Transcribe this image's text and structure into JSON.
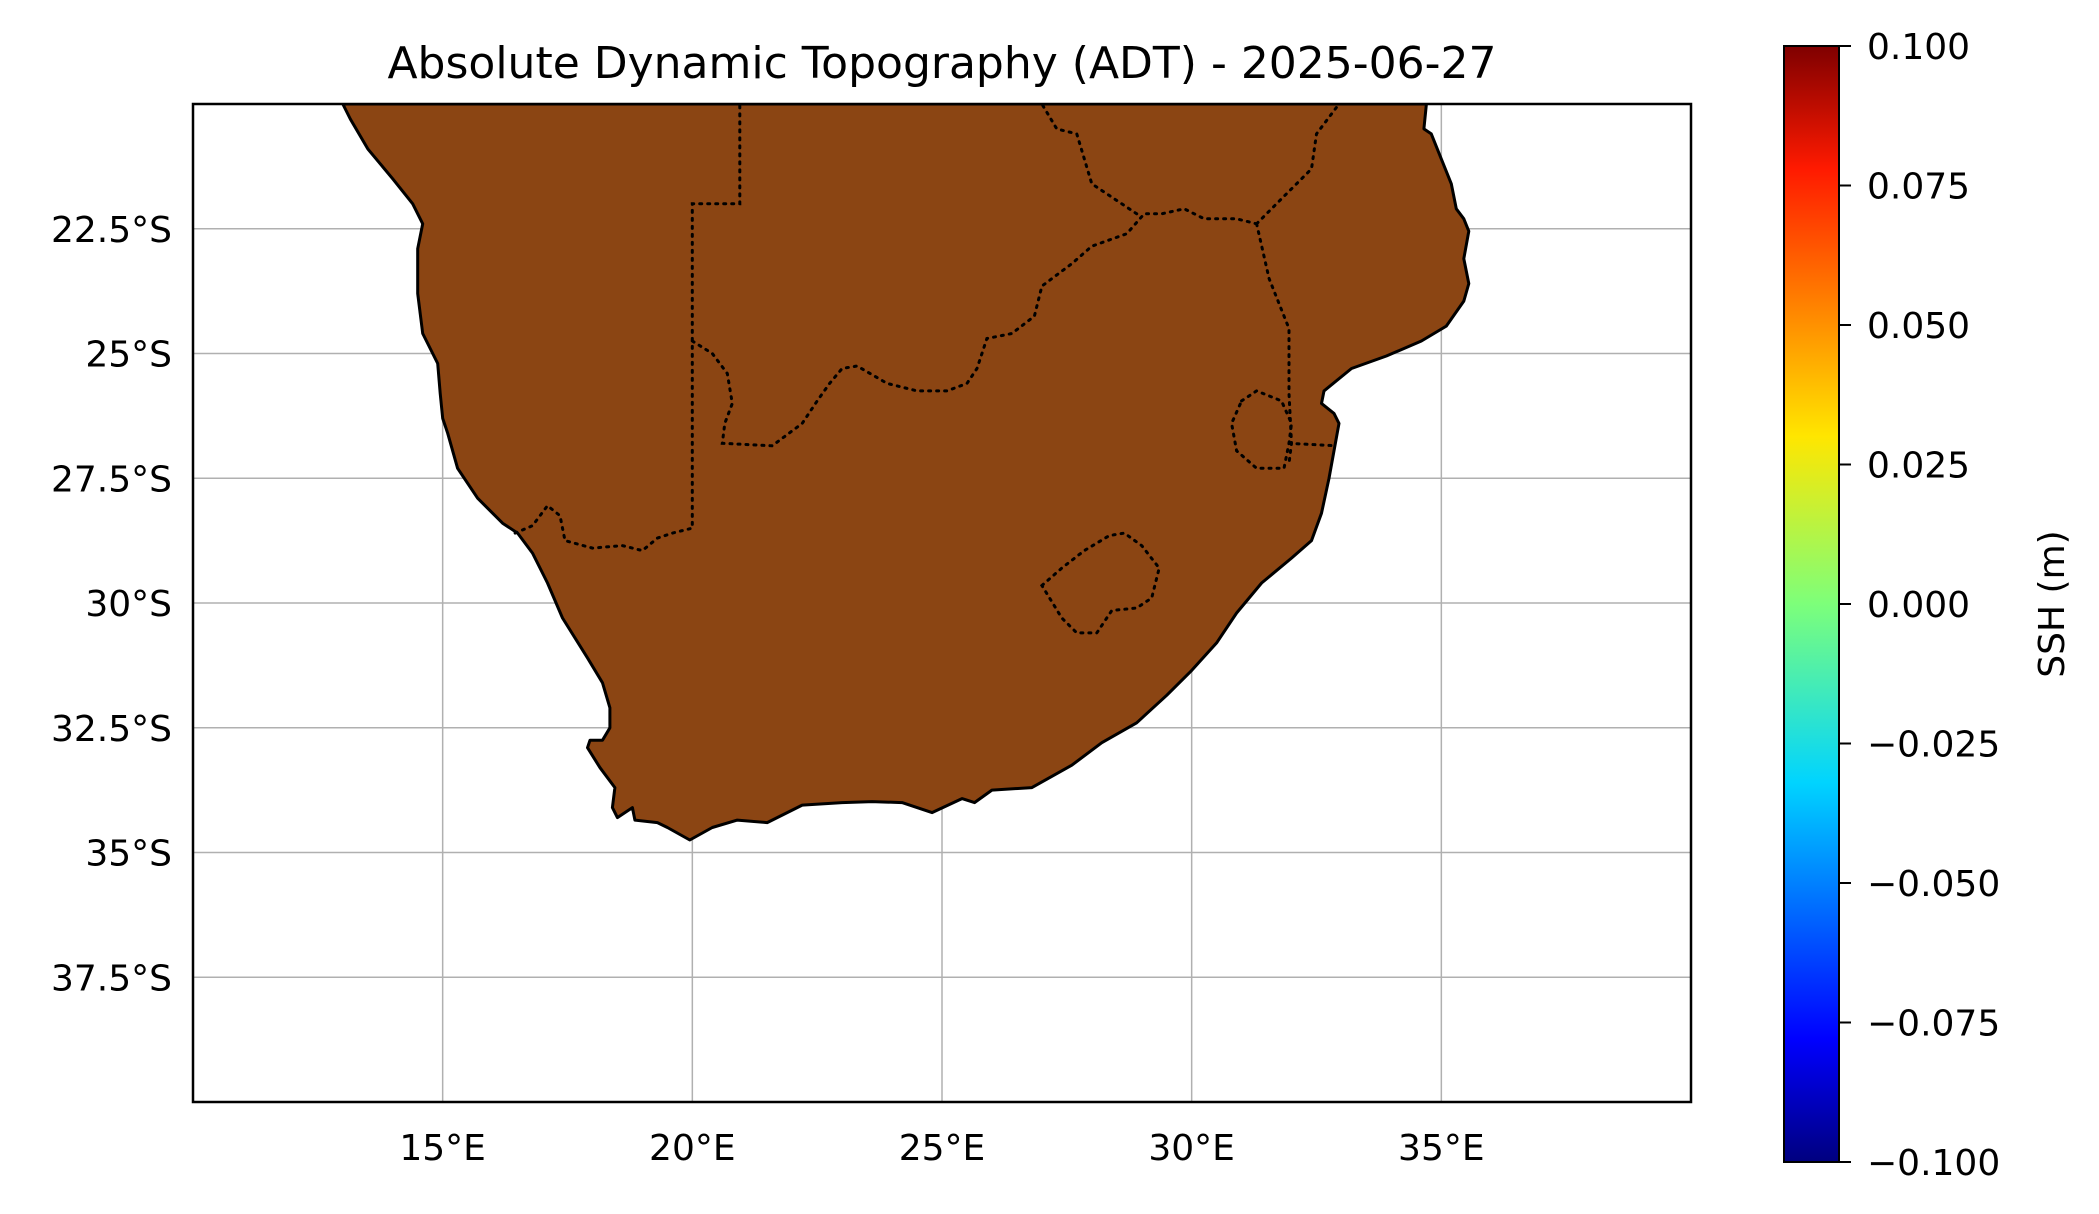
{
  "title": "Absolute Dynamic Topography (ADT) - 2025-06-27",
  "map": {
    "lon_range": [
      10,
      40
    ],
    "lat_range": [
      -40,
      -20
    ],
    "projection": "PlateCarree",
    "land_color": "#8B4513",
    "coastline_color": "#000000",
    "borders_style": "dotted",
    "gridlines": true,
    "x_ticks": [
      {
        "value": 15,
        "label": "15°E"
      },
      {
        "value": 20,
        "label": "20°E"
      },
      {
        "value": 25,
        "label": "25°E"
      },
      {
        "value": 30,
        "label": "30°E"
      },
      {
        "value": 35,
        "label": "35°E"
      }
    ],
    "y_ticks": [
      {
        "value": -22.5,
        "label": "22.5°S"
      },
      {
        "value": -25,
        "label": "25°S"
      },
      {
        "value": -27.5,
        "label": "27.5°S"
      },
      {
        "value": -30,
        "label": "30°S"
      },
      {
        "value": -32.5,
        "label": "32.5°S"
      },
      {
        "value": -35,
        "label": "35°S"
      },
      {
        "value": -37.5,
        "label": "37.5°S"
      }
    ],
    "coastline": [
      [
        13.0,
        -20.0
      ],
      [
        13.15,
        -20.3
      ],
      [
        13.5,
        -20.9
      ],
      [
        14.0,
        -21.5
      ],
      [
        14.4,
        -22.0
      ],
      [
        14.6,
        -22.4
      ],
      [
        14.5,
        -22.9
      ],
      [
        14.5,
        -23.8
      ],
      [
        14.6,
        -24.6
      ],
      [
        14.9,
        -25.2
      ],
      [
        14.95,
        -25.8
      ],
      [
        15.0,
        -26.3
      ],
      [
        15.1,
        -26.6
      ],
      [
        15.3,
        -27.3
      ],
      [
        15.7,
        -27.9
      ],
      [
        16.2,
        -28.4
      ],
      [
        16.5,
        -28.6
      ],
      [
        16.8,
        -29.0
      ],
      [
        17.1,
        -29.6
      ],
      [
        17.4,
        -30.3
      ],
      [
        17.9,
        -31.1
      ],
      [
        18.2,
        -31.6
      ],
      [
        18.35,
        -32.1
      ],
      [
        18.35,
        -32.5
      ],
      [
        18.2,
        -32.75
      ],
      [
        17.95,
        -32.75
      ],
      [
        17.9,
        -32.9
      ],
      [
        18.15,
        -33.3
      ],
      [
        18.45,
        -33.7
      ],
      [
        18.4,
        -34.1
      ],
      [
        18.5,
        -34.3
      ],
      [
        18.8,
        -34.1
      ],
      [
        18.85,
        -34.35
      ],
      [
        19.3,
        -34.4
      ],
      [
        19.5,
        -34.5
      ],
      [
        19.95,
        -34.75
      ],
      [
        20.4,
        -34.5
      ],
      [
        20.9,
        -34.35
      ],
      [
        21.5,
        -34.4
      ],
      [
        22.2,
        -34.05
      ],
      [
        23.0,
        -34.0
      ],
      [
        23.6,
        -33.98
      ],
      [
        24.2,
        -34.0
      ],
      [
        24.8,
        -34.2
      ],
      [
        25.4,
        -33.92
      ],
      [
        25.65,
        -34.0
      ],
      [
        26.0,
        -33.75
      ],
      [
        26.8,
        -33.7
      ],
      [
        27.6,
        -33.25
      ],
      [
        28.2,
        -32.8
      ],
      [
        28.9,
        -32.4
      ],
      [
        29.5,
        -31.85
      ],
      [
        30.0,
        -31.35
      ],
      [
        30.5,
        -30.8
      ],
      [
        30.9,
        -30.2
      ],
      [
        31.4,
        -29.6
      ],
      [
        32.0,
        -29.1
      ],
      [
        32.4,
        -28.75
      ],
      [
        32.6,
        -28.2
      ],
      [
        32.75,
        -27.5
      ],
      [
        32.85,
        -26.95
      ],
      [
        32.95,
        -26.4
      ],
      [
        32.85,
        -26.2
      ],
      [
        32.6,
        -26.0
      ],
      [
        32.65,
        -25.75
      ],
      [
        33.2,
        -25.3
      ],
      [
        33.9,
        -25.05
      ],
      [
        34.6,
        -24.75
      ],
      [
        35.1,
        -24.45
      ],
      [
        35.45,
        -23.95
      ],
      [
        35.55,
        -23.6
      ],
      [
        35.45,
        -23.1
      ],
      [
        35.55,
        -22.55
      ],
      [
        35.45,
        -22.3
      ],
      [
        35.3,
        -22.1
      ],
      [
        35.2,
        -21.6
      ],
      [
        35.0,
        -21.1
      ],
      [
        34.8,
        -20.6
      ],
      [
        34.65,
        -20.5
      ],
      [
        34.7,
        -20.0
      ]
    ],
    "borders": [
      [
        [
          16.45,
          -28.6
        ],
        [
          16.8,
          -28.45
        ],
        [
          17.1,
          -28.05
        ],
        [
          17.35,
          -28.25
        ],
        [
          17.45,
          -28.75
        ],
        [
          18.0,
          -28.9
        ],
        [
          18.6,
          -28.85
        ],
        [
          19.0,
          -28.95
        ],
        [
          19.3,
          -28.7
        ],
        [
          19.6,
          -28.6
        ],
        [
          20.0,
          -28.5
        ],
        [
          20.0,
          -26.8
        ],
        [
          20.0,
          -24.75
        ],
        [
          20.0,
          -22.0
        ],
        [
          20.95,
          -22.0
        ],
        [
          20.95,
          -20.0
        ]
      ],
      [
        [
          20.0,
          -24.75
        ],
        [
          20.4,
          -25.0
        ],
        [
          20.7,
          -25.4
        ],
        [
          20.8,
          -26.0
        ],
        [
          20.65,
          -26.4
        ],
        [
          20.6,
          -26.8
        ],
        [
          21.6,
          -26.85
        ],
        [
          22.2,
          -26.4
        ],
        [
          22.5,
          -25.95
        ],
        [
          22.75,
          -25.6
        ],
        [
          23.0,
          -25.3
        ],
        [
          23.3,
          -25.25
        ],
        [
          23.9,
          -25.6
        ],
        [
          24.5,
          -25.75
        ],
        [
          25.1,
          -25.75
        ],
        [
          25.5,
          -25.6
        ],
        [
          25.7,
          -25.3
        ],
        [
          25.9,
          -24.7
        ],
        [
          26.4,
          -24.6
        ],
        [
          26.85,
          -24.25
        ],
        [
          27.0,
          -23.65
        ],
        [
          27.6,
          -23.2
        ],
        [
          28.0,
          -22.85
        ],
        [
          28.7,
          -22.6
        ],
        [
          29.05,
          -22.2
        ],
        [
          29.4,
          -22.2
        ],
        [
          29.85,
          -22.1
        ],
        [
          30.25,
          -22.3
        ],
        [
          30.9,
          -22.3
        ],
        [
          31.3,
          -22.4
        ]
      ],
      [
        [
          31.3,
          -22.4
        ],
        [
          31.55,
          -23.5
        ],
        [
          31.95,
          -24.5
        ],
        [
          31.95,
          -25.8
        ],
        [
          32.0,
          -26.8
        ],
        [
          31.95,
          -27.2
        ]
      ],
      [
        [
          31.95,
          -26.8
        ],
        [
          32.9,
          -26.85
        ]
      ],
      [
        [
          31.3,
          -22.4
        ],
        [
          31.8,
          -21.9
        ],
        [
          32.4,
          -21.3
        ],
        [
          32.5,
          -20.6
        ],
        [
          32.95,
          -20.0
        ]
      ],
      [
        [
          28.9,
          -22.2
        ],
        [
          28.0,
          -21.6
        ],
        [
          27.7,
          -20.6
        ],
        [
          27.3,
          -20.5
        ],
        [
          27.0,
          -20.0
        ]
      ]
    ],
    "lesotho": [
      [
        27.0,
        -29.65
      ],
      [
        27.4,
        -29.3
      ],
      [
        27.85,
        -28.95
      ],
      [
        28.35,
        -28.65
      ],
      [
        28.65,
        -28.6
      ],
      [
        29.0,
        -28.85
      ],
      [
        29.35,
        -29.3
      ],
      [
        29.2,
        -29.9
      ],
      [
        28.9,
        -30.1
      ],
      [
        28.4,
        -30.15
      ],
      [
        28.1,
        -30.6
      ],
      [
        27.7,
        -30.6
      ],
      [
        27.4,
        -30.3
      ],
      [
        27.0,
        -29.65
      ]
    ],
    "eswatini": [
      [
        31.0,
        -25.95
      ],
      [
        31.3,
        -25.75
      ],
      [
        31.8,
        -25.95
      ],
      [
        32.0,
        -26.4
      ],
      [
        31.95,
        -26.8
      ],
      [
        31.85,
        -27.3
      ],
      [
        31.3,
        -27.3
      ],
      [
        30.9,
        -26.95
      ],
      [
        30.8,
        -26.4
      ],
      [
        31.0,
        -25.95
      ]
    ]
  },
  "colorbar": {
    "label": "SSH (m)",
    "vmin": -0.1,
    "vmax": 0.1,
    "colormap": "jet",
    "ticks": [
      {
        "value": 0.1,
        "label": "0.100"
      },
      {
        "value": 0.075,
        "label": "0.075"
      },
      {
        "value": 0.05,
        "label": "0.050"
      },
      {
        "value": 0.025,
        "label": "0.025"
      },
      {
        "value": 0.0,
        "label": "0.000"
      },
      {
        "value": -0.025,
        "label": "−0.025"
      },
      {
        "value": -0.05,
        "label": "−0.050"
      },
      {
        "value": -0.075,
        "label": "−0.075"
      },
      {
        "value": -0.1,
        "label": "−0.100"
      }
    ]
  }
}
